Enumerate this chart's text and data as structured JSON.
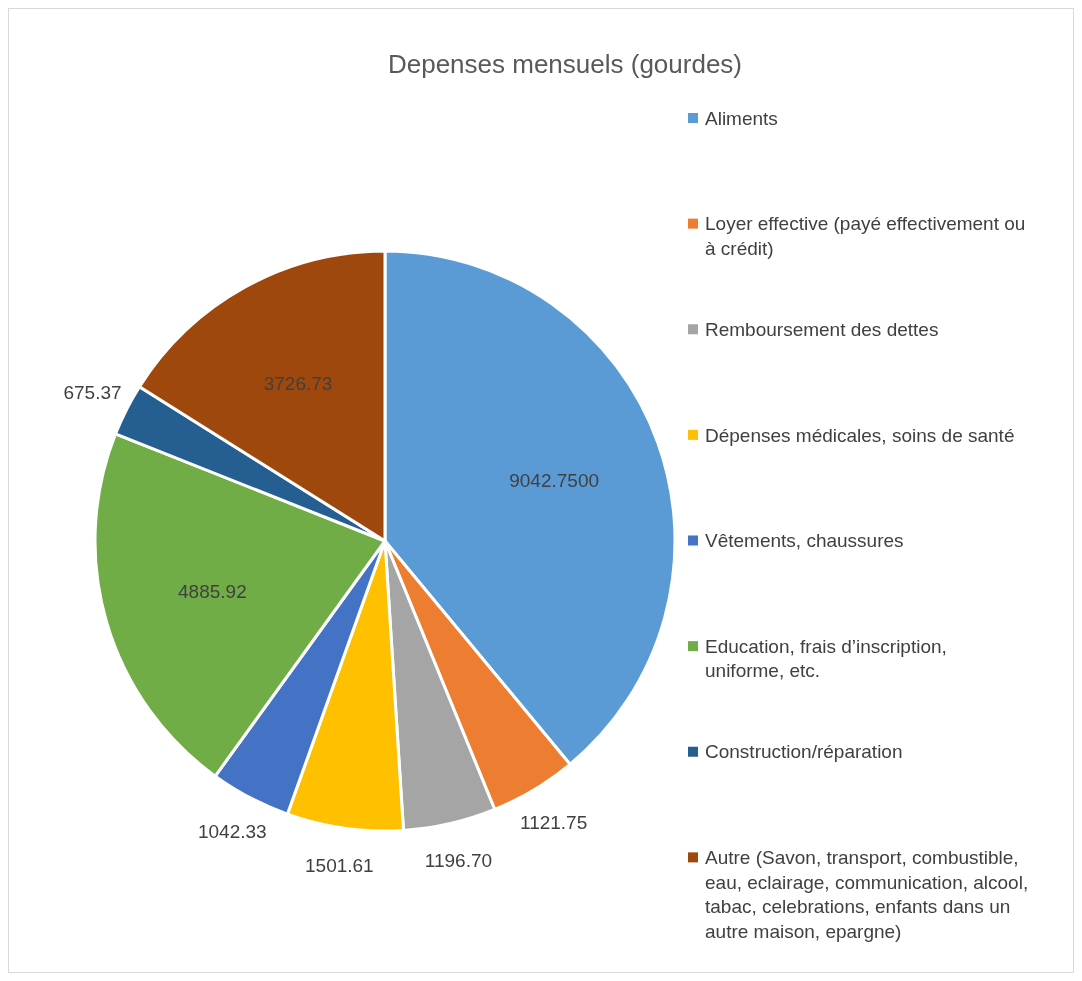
{
  "chart_data": {
    "type": "pie",
    "title": "Depenses mensuels (gourdes)",
    "categories": [
      "Aliments",
      "Loyer effective (payé effectivement ou à crédit)",
      "Remboursement des dettes",
      "Dépenses médicales, soins de santé",
      "Vêtements, chaussures",
      "Education, frais d’inscription, uniforme, etc.",
      "Construction/réparation",
      "Autre (Savon, transport, combustible, eau, eclairage, communication, alcool, tabac, celebrations, enfants dans un autre maison, epargne)"
    ],
    "values": [
      9042.75,
      1121.75,
      1196.7,
      1501.61,
      1042.33,
      4885.92,
      675.37,
      3726.73
    ],
    "value_labels": [
      "9042.7500",
      "1121.75",
      "1196.70",
      "1501.61",
      "1042.33",
      "4885.92",
      "675.37",
      "3726.73"
    ],
    "colors": [
      "#5b9bd5",
      "#ed7d31",
      "#a5a5a5",
      "#ffc000",
      "#4472c4",
      "#70ad47",
      "#255e91",
      "#9e480e"
    ],
    "legend": "right"
  }
}
